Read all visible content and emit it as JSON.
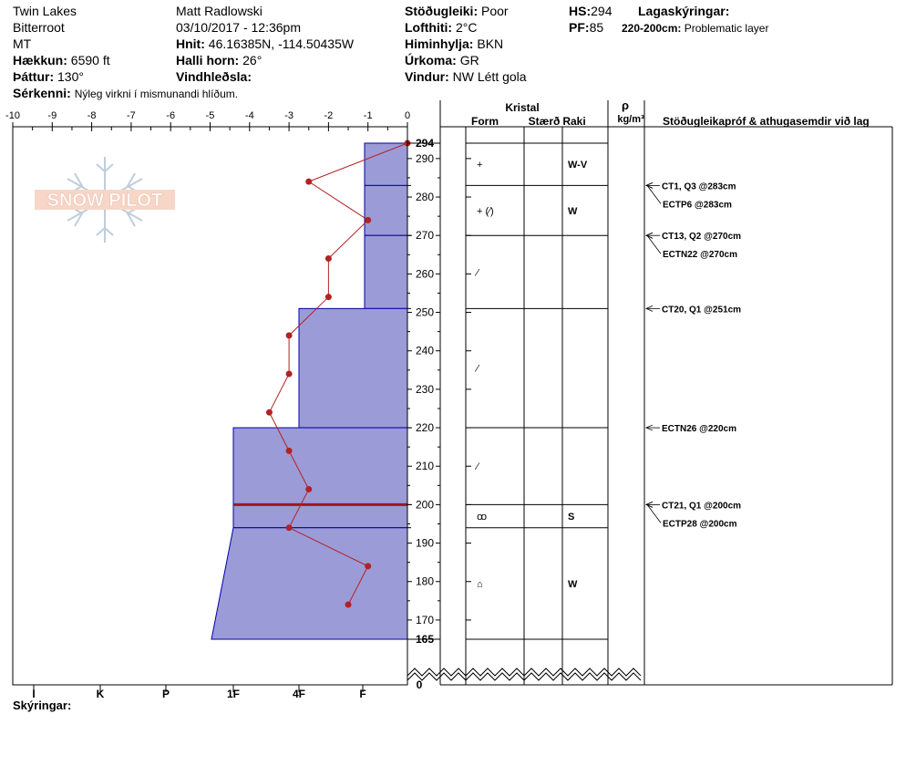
{
  "header": {
    "location": "Twin Lakes",
    "region": "Bitterroot",
    "state": "MT",
    "elevation_label": "Hækkun:",
    "elevation": "6590 ft",
    "aspect_label": "Þáttur:",
    "aspect": "130°",
    "features_label": "Sérkenni:",
    "features": "Nýleg virkni í mismunandi hlíðum.",
    "observer": "Matt Radlowski",
    "datetime": "03/10/2017 - 12:36pm",
    "coords_label": "Hnit:",
    "coords": "46.16385N, -114.50435W",
    "slope_label": "Halli horn:",
    "slope": "26°",
    "wind_loading_label": "Vindhleðsla:",
    "stability_label": "Stöðugleiki:",
    "stability": "Poor",
    "air_temp_label": "Lofthiti:",
    "air_temp": "2°C",
    "sky_label": "Himinhylja:",
    "sky": "BKN",
    "precip_label": "Úrkoma:",
    "precip": "GR",
    "wind_label": "Vindur:",
    "wind": "NW Létt gola",
    "hs_label": "HS:",
    "hs": "294",
    "pf_label": "PF:",
    "pf": "85",
    "layers_label": "Lagaskýringar:",
    "layer_note_range": "220-200cm:",
    "layer_note": "Problematic layer"
  },
  "columns": {
    "crystal": "Kristal",
    "form": "Form",
    "size": "Stærð",
    "moisture": "Raki",
    "rho": "ρ",
    "density_unit": "kg/m³",
    "tests_header": "Stöðugleikapróf & athugasemdir við lag"
  },
  "footer": {
    "legend_label": "Skýringar:"
  },
  "logo_text": "SNOW PILOT",
  "colors": {
    "hardness_fill": "#9b9bd8",
    "hardness_stroke": "#0000aa",
    "temp_line": "#b22222",
    "weak_layer": "#a01818"
  },
  "chart_data": {
    "type": "snow_profile",
    "temperature_axis": {
      "label_ticks": [
        -10,
        -9,
        -8,
        -7,
        -6,
        -5,
        -4,
        -3,
        -2,
        -1,
        0
      ],
      "range": [
        -10,
        0
      ]
    },
    "hardness_axis": {
      "labels": [
        "I",
        "K",
        "P",
        "1F",
        "4F",
        "F"
      ]
    },
    "depth_axis": {
      "range": [
        0,
        294
      ],
      "ticks": [
        170,
        180,
        190,
        200,
        210,
        220,
        230,
        240,
        250,
        260,
        270,
        280,
        290
      ],
      "extra_labels": [
        "294",
        "165",
        "0"
      ]
    },
    "hardness_layers": [
      {
        "top": 294,
        "bottom": 283,
        "hardness": "F"
      },
      {
        "top": 283,
        "bottom": 270,
        "hardness": "F"
      },
      {
        "top": 270,
        "bottom": 251,
        "hardness": "F"
      },
      {
        "top": 251,
        "bottom": 220,
        "hardness": "4F"
      },
      {
        "top": 220,
        "bottom": 200,
        "hardness": "1F"
      },
      {
        "top": 200,
        "bottom": 194,
        "hardness": "1F"
      },
      {
        "top": 194,
        "bottom": 165,
        "hardness": "1F to P"
      }
    ],
    "layer_boundaries": [
      294,
      283,
      270,
      251,
      220,
      200,
      194,
      165
    ],
    "problematic_layer_depth": 200,
    "temperature_profile": [
      {
        "depth": 294,
        "temp": 0.0
      },
      {
        "depth": 284,
        "temp": -2.5
      },
      {
        "depth": 274,
        "temp": -1.0
      },
      {
        "depth": 264,
        "temp": -2.0
      },
      {
        "depth": 254,
        "temp": -2.0
      },
      {
        "depth": 244,
        "temp": -3.0
      },
      {
        "depth": 234,
        "temp": -3.0
      },
      {
        "depth": 224,
        "temp": -3.5
      },
      {
        "depth": 214,
        "temp": -3.0
      },
      {
        "depth": 204,
        "temp": -2.5
      },
      {
        "depth": 194,
        "temp": -3.0
      },
      {
        "depth": 184,
        "temp": -1.0
      },
      {
        "depth": 174,
        "temp": -1.5
      }
    ],
    "layer_properties": [
      {
        "depth_mid": 288.5,
        "form": "+",
        "moisture": "W-V"
      },
      {
        "depth_mid": 276.5,
        "form": "+ (⁄)",
        "moisture": "W"
      },
      {
        "depth_mid": 260.5,
        "form": "⁄",
        "moisture": ""
      },
      {
        "depth_mid": 235.5,
        "form": "⁄",
        "moisture": ""
      },
      {
        "depth_mid": 210,
        "form": "⁄",
        "moisture": ""
      },
      {
        "depth_mid": 197,
        "form": "ꝏ",
        "moisture": "S"
      },
      {
        "depth_mid": 179.5,
        "form": "⌂",
        "moisture": "W"
      }
    ],
    "stability_tests": [
      {
        "label": "CT1, Q3 @283cm",
        "depth": 283
      },
      {
        "label": "ECTP6 @283cm",
        "depth": 283
      },
      {
        "label": "CT13, Q2 @270cm",
        "depth": 270
      },
      {
        "label": "ECTN22 @270cm",
        "depth": 270
      },
      {
        "label": "CT20, Q1 @251cm",
        "depth": 251
      },
      {
        "label": "ECTN26 @220cm",
        "depth": 220
      },
      {
        "label": "CT21, Q1 @200cm",
        "depth": 200
      },
      {
        "label": "ECTP28 @200cm",
        "depth": 200
      }
    ]
  }
}
